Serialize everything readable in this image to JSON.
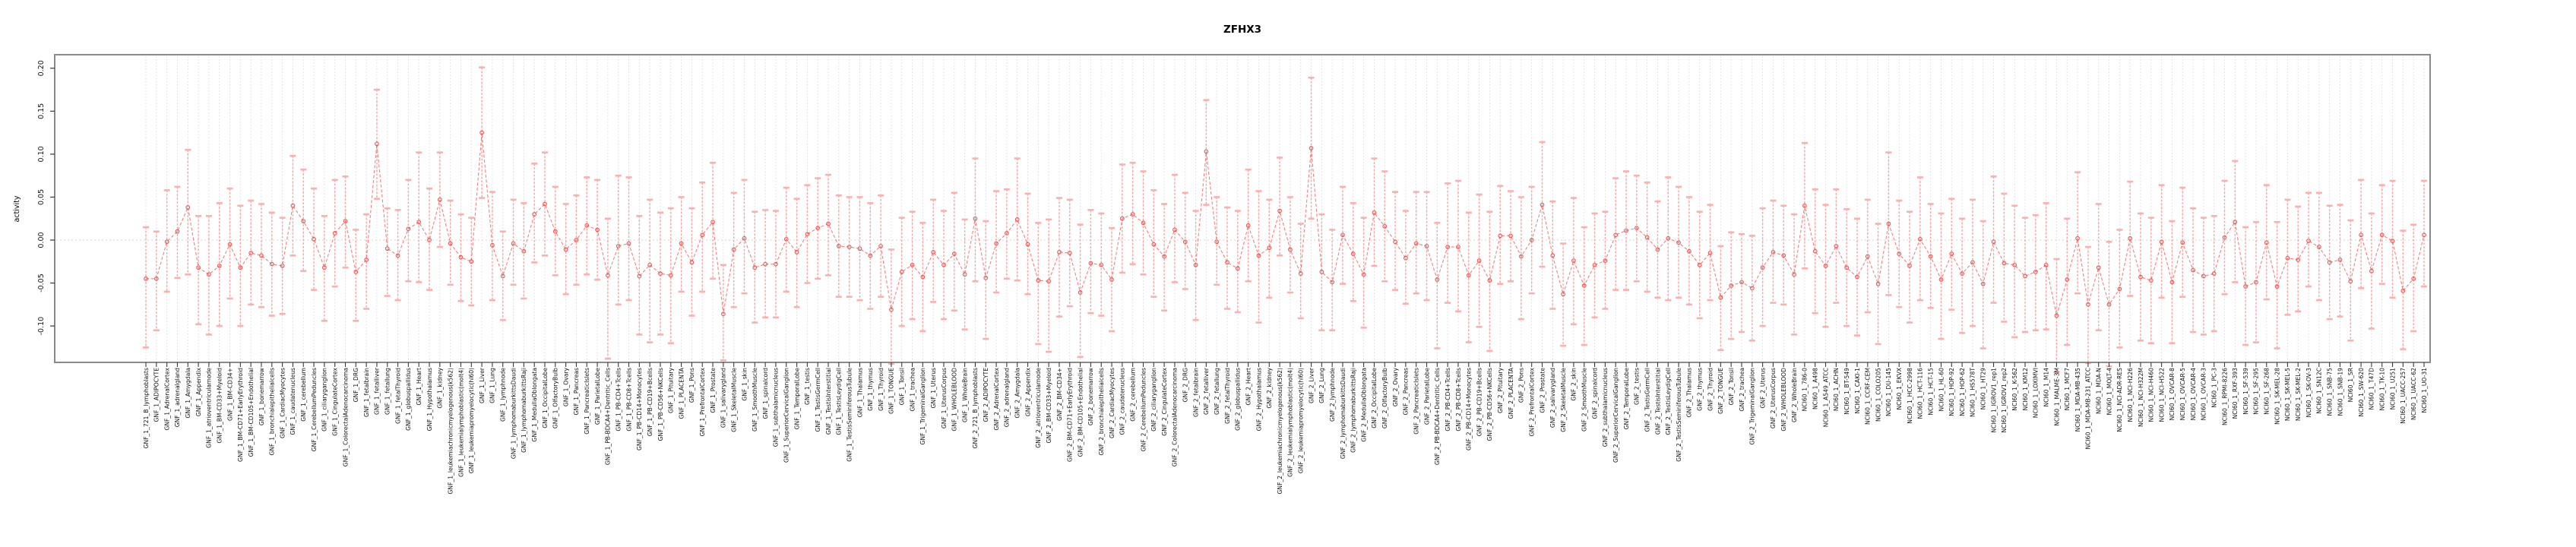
{
  "chart_data": {
    "type": "line",
    "subtype": "point-estimates-with-error-bars",
    "title": "ZFHX3",
    "ylabel": "activity",
    "xlabel": "",
    "legend_position": "none",
    "grid": {
      "vertical_dotted_per_category": true,
      "zero_line_dotted": true
    },
    "ylim": [
      -0.142,
      0.216
    ],
    "yticks": [
      0.2,
      0.15,
      0.1,
      0.05,
      0.0,
      -0.05,
      -0.1
    ],
    "colors": {
      "point": "#e85555",
      "connect_line": "#ef6666",
      "error_bar": "#f78f8f",
      "error_cap": "#fbb0b0",
      "gridline": "#d8d8d8",
      "zero_line": "#e3cfcf",
      "box": "#8a8a8a",
      "text": "#111111"
    },
    "categories": [
      "GNF_1_721_B_lymphoblasts",
      "GNF_1_ADIPOCYTE",
      "GNF_1_AdrenalCortex",
      "GNF_1_adrenalgland",
      "GNF_1_Amygdala",
      "GNF_1_Appendix",
      "GNF_1_atrioventricularnode",
      "GNF_1_BM-CD33+Myeloid",
      "GNF_1_BM-CD34+",
      "GNF_1_BM-CD71+EarlyErythroid",
      "GNF_1_BM-CD105+Endothelial",
      "GNF_1_bonemarrow",
      "GNF_1_bronchialepithelialcells",
      "GNF_1_CardiacMyocytes",
      "GNF_1_caudatenucleus",
      "GNF_1_cerebellum",
      "GNF_1_CerebellumPeduncles",
      "GNF_1_ciliaryganglion",
      "GNF_1_CingulateCortex",
      "GNF_1_ColorectalAdenocarcinoma",
      "GNF_1_DRG",
      "GNF_1_fetalbrain",
      "GNF_1_fetalliver",
      "GNF_1_fetallung",
      "GNF_1_fetalThyroid",
      "GNF_1_globuspallidus",
      "GNF_1_Heart",
      "GNF_1_Hypothalamus",
      "GNF_1_kidney",
      "GNF_1_leukemiachronicmyelogenous(k562)",
      "GNF_1_leukemialymphoblastic(molt4)",
      "GNF_1_leukemiapromyelocytic(hl60)",
      "GNF_1_Liver",
      "GNF_1_Lung",
      "GNF_1_lymphnode",
      "GNF_1_lymphomaburkittsDaudi",
      "GNF_1_lymphomaburkittsRaji",
      "GNF_1_MedullaOblongata",
      "GNF_1_OccipitalLobe",
      "GNF_1_OlfactoryBulb",
      "GNF_1_Ovary",
      "GNF_1_Pancreas",
      "GNF_1_PancreaticIslets",
      "GNF_1_ParietalLobe",
      "GNF_1_PB-BDCA4+Dentritic_Cells",
      "GNF_1_PB-CD4+Tcells",
      "GNF_1_PB-CD8+Tcells",
      "GNF_1_PB-CD14+Monocytes",
      "GNF_1_PB-CD19+Bcells",
      "GNF_1_PB-CD56+NKCells",
      "GNF_1_Pituitary",
      "GNF_1_PLACENTA",
      "GNF_1_Pons",
      "GNF_1_PrefrontalCortex",
      "GNF_1_Prostate",
      "GNF_1_salivarygland",
      "GNF_1_SkeletalMuscle",
      "GNF_1_skin",
      "GNF_1_SmoothMuscle",
      "GNF_1_spinalcord",
      "GNF_1_subthalamicnucleus",
      "GNF_1_SuperiorCervicalGanglion",
      "GNF_1_TemporalLobe",
      "GNF_1_testis",
      "GNF_1_TestisGermCell",
      "GNF_1_TestisInterstitial",
      "GNF_1_TestisLeydigCell",
      "GNF_1_TestisSeminiferousTubule",
      "GNF_1_Thalamus",
      "GNF_1_thymus",
      "GNF_1_Thyroid",
      "GNF_1_TONGUE",
      "GNF_1_Tonsil",
      "GNF_1_trachea",
      "GNF_1_TrigeminalGanglion",
      "GNF_1_Uterus",
      "GNF_1_UterusCorpus",
      "GNF_1_WHOLEBLOOD",
      "GNF_1_WholeBrain",
      "GNF_2_721_B_lymphoblasts",
      "GNF_2_ADIPOCYTE",
      "GNF_2_AdrenalCortex",
      "GNF_2_adrenalgland",
      "GNF_2_Amygdala",
      "GNF_2_Appendix",
      "GNF_2_atrioventricularnode",
      "GNF_2_BM-CD33+Myeloid",
      "GNF_2_BM-CD34+",
      "GNF_2_BM-CD71+EarlyErythroid",
      "GNF_2_BM-CD105+Endothelial",
      "GNF_2_bonemarrow",
      "GNF_2_bronchialepithelialcells",
      "GNF_2_CardiacMyocytes",
      "GNF_2_caudatenucleus",
      "GNF_2_cerebellum",
      "GNF_2_CerebellumPeduncles",
      "GNF_2_ciliaryganglion",
      "GNF_2_CingulateCortex",
      "GNF_2_ColorectalAdenocarcinoma",
      "GNF_2_DRG",
      "GNF_2_fetalbrain",
      "GNF_2_fetalliver",
      "GNF_2_fetallung",
      "GNF_2_fetalThyroid",
      "GNF_2_globuspallidus",
      "GNF_2_Heart",
      "GNF_2_Hypothalamus",
      "GNF_2_kidney",
      "GNF_2_leukemiachronicmyelogenous(k562)",
      "GNF_2_leukemialymphoblastic(molt4)",
      "GNF_2_leukemiapromyelocytic(hl60)",
      "GNF_2_Liver",
      "GNF_2_Lung",
      "GNF_2_lymphnode",
      "GNF_2_lymphomaburkittsDaudi",
      "GNF_2_lymphomaburkittsRaji",
      "GNF_2_MedullaOblongata",
      "GNF_2_OccipitalLobe",
      "GNF_2_OlfactoryBulb",
      "GNF_2_Ovary",
      "GNF_2_Pancreas",
      "GNF_2_PancreaticIslets",
      "GNF_2_ParietalLobe",
      "GNF_2_PB-BDCA4+Dentritic_Cells",
      "GNF_2_PB-CD4+Tcells",
      "GNF_2_PB-CD8+Tcells",
      "GNF_2_PB-CD14+Monocytes",
      "GNF_2_PB-CD19+Bcells",
      "GNF_2_PB-CD56+NKCells",
      "GNF_2_Pituitary",
      "GNF_2_PLACENTA",
      "GNF_2_Pons",
      "GNF_2_PrefrontalCortex",
      "GNF_2_Prostate",
      "GNF_2_salivarygland",
      "GNF_2_SkeletalMuscle",
      "GNF_2_skin",
      "GNF_2_SmoothMuscle",
      "GNF_2_spinalcord",
      "GNF_2_subthalamicnucleus",
      "GNF_2_SuperiorCervicalGanglion",
      "GNF_2_TemporalLobe",
      "GNF_2_testis",
      "GNF_2_TestisGermCell",
      "GNF_2_TestisInterstitial",
      "GNF_2_TestisLeydigCell",
      "GNF_2_TestisSeminiferousTubule",
      "GNF_2_Thalamus",
      "GNF_2_thymus",
      "GNF_2_Thyroid",
      "GNF_2_TONGUE",
      "GNF_2_Tonsil",
      "GNF_2_trachea",
      "GNF_2_TrigeminalGanglion",
      "GNF_2_Uterus",
      "GNF_2_UterusCorpus",
      "GNF_2_WHOLEBLOOD",
      "GNF_2_WholeBrain",
      "NCI60_1_786-0",
      "NCI60_1_A498",
      "NCI60_1_A549_ATCC",
      "NCI60_1_ACHN",
      "NCI60_1_BT-549",
      "NCI60_1_CAKI-1",
      "NCI60_1_CCRF-CEM",
      "NCI60_1_COLO205",
      "NCI60_1_DU-145",
      "NCI60_1_EKVX",
      "NCI60_1_HCC-2998",
      "NCI60_1_HCT-116",
      "NCI60_1_HCT-15",
      "NCI60_1_HL-60",
      "NCI60_1_HOP-92",
      "NCI60_1_HOP-62",
      "NCI60_1_HS578T",
      "NCI60_1_HT29",
      "NCI60_1_IGROV1_rep1",
      "NCI60_1_IGROV1_rep2",
      "NCI60_1_K-562",
      "NCI60_1_KM12",
      "NCI60_1_LOXIMVI",
      "NCI60_1_M14",
      "NCI60_1_MALME-3M",
      "NCI60_1_MCF7",
      "NCI60_1_MDA-MB-435",
      "NCI60_1_MDA-MB-231_ATCC",
      "NCI60_1_MDA-N",
      "NCI60_1_MOLT-4",
      "NCI60_1_NCI-ADR-RES",
      "NCI60_1_NCI-H226",
      "NCI60_1_NCI-H322M",
      "NCI60_1_NCI-H460",
      "NCI60_1_NCI-H522",
      "NCI60_1_OVCAR-8",
      "NCI60_1_OVCAR-5",
      "NCI60_1_OVCAR-4",
      "NCI60_1_OVCAR-3",
      "NCI60_1_PC-3",
      "NCI60_1_RPMI-8226",
      "NCI60_1_RXF-393",
      "NCI60_1_SF-539",
      "NCI60_1_SF-295",
      "NCI60_1_SF-268",
      "NCI60_1_SK-MEL-28",
      "NCI60_1_SK-MEL-5",
      "NCI60_1_SK-MEL-2",
      "NCI60_1_SK-OV-3",
      "NCI60_1_SN12C",
      "NCI60_1_SNB-75",
      "NCI60_1_SNB-19",
      "NCI60_1_SR",
      "NCI60_1_SW-620",
      "NCI60_1_T47D",
      "NCI60_1_TK-10",
      "NCI60_1_U251",
      "NCI60_1_UACC-257",
      "NCI60_1_UACC-62",
      "NCI60_1_UO-31"
    ],
    "series": [
      {
        "name": "mean",
        "values": [
          -0.045,
          -0.045,
          -0.002,
          0.01,
          0.038,
          -0.032,
          -0.04,
          -0.03,
          -0.005,
          -0.032,
          -0.015,
          -0.018,
          -0.028,
          -0.03,
          0.04,
          0.022,
          0.001,
          -0.032,
          0.008,
          0.022,
          -0.037,
          -0.023,
          0.112,
          -0.01,
          -0.018,
          0.013,
          0.021,
          0.0,
          0.047,
          -0.004,
          -0.02,
          -0.025,
          0.125,
          -0.006,
          -0.042,
          -0.004,
          -0.013,
          0.03,
          0.042,
          0.01,
          -0.011,
          0.0,
          0.017,
          0.012,
          -0.041,
          -0.007,
          -0.004,
          -0.042,
          -0.029,
          -0.039,
          -0.041,
          -0.004,
          -0.026,
          0.006,
          0.021,
          -0.086,
          -0.011,
          0.002,
          -0.032,
          -0.028,
          -0.028,
          0.001,
          -0.014,
          0.007,
          0.014,
          0.019,
          -0.007,
          -0.008,
          -0.01,
          -0.018,
          -0.007,
          -0.081,
          -0.037,
          -0.029,
          -0.043,
          -0.014,
          -0.029,
          -0.016,
          -0.04,
          0.025,
          -0.044,
          -0.004,
          0.008,
          0.024,
          -0.005,
          -0.047,
          -0.048,
          -0.014,
          -0.015,
          -0.061,
          -0.027,
          -0.029,
          -0.046,
          0.025,
          0.03,
          0.02,
          -0.005,
          -0.019,
          0.012,
          -0.002,
          -0.029,
          0.103,
          -0.002,
          -0.026,
          -0.033,
          0.017,
          -0.018,
          -0.009,
          0.034,
          -0.011,
          -0.039,
          0.107,
          -0.037,
          -0.049,
          0.006,
          -0.016,
          -0.04,
          0.032,
          0.016,
          -0.002,
          -0.021,
          -0.004,
          -0.007,
          -0.046,
          -0.008,
          -0.008,
          -0.041,
          -0.024,
          -0.047,
          0.005,
          0.005,
          -0.019,
          0.0,
          0.041,
          -0.018,
          -0.063,
          -0.024,
          -0.053,
          -0.029,
          -0.024,
          0.006,
          0.011,
          0.014,
          0.003,
          -0.011,
          0.002,
          -0.003,
          -0.013,
          -0.029,
          -0.015,
          -0.067,
          -0.053,
          -0.049,
          -0.056,
          -0.032,
          -0.014,
          -0.018,
          -0.04,
          0.04,
          -0.013,
          -0.03,
          -0.007,
          -0.032,
          -0.043,
          -0.019,
          -0.051,
          0.019,
          -0.016,
          -0.03,
          0.001,
          -0.019,
          -0.046,
          -0.016,
          -0.039,
          -0.026,
          -0.051,
          -0.002,
          -0.027,
          -0.029,
          -0.042,
          -0.037,
          -0.029,
          -0.088,
          -0.046,
          0.002,
          -0.075,
          -0.032,
          -0.075,
          -0.057,
          0.002,
          -0.043,
          -0.047,
          -0.002,
          -0.049,
          -0.003,
          -0.035,
          -0.042,
          -0.039,
          0.003,
          0.021,
          -0.054,
          -0.049,
          -0.003,
          -0.054,
          -0.021,
          -0.023,
          -0.001,
          -0.008,
          -0.026,
          -0.023,
          -0.048,
          0.006,
          -0.036,
          0.006,
          -0.001,
          -0.059,
          -0.045,
          0.006
        ]
      },
      {
        "name": "ci_lower",
        "values": [
          -0.125,
          -0.105,
          -0.06,
          -0.044,
          -0.04,
          -0.098,
          -0.11,
          -0.1,
          -0.068,
          -0.1,
          -0.075,
          -0.078,
          -0.088,
          -0.086,
          -0.018,
          -0.036,
          -0.058,
          -0.094,
          -0.054,
          -0.032,
          -0.094,
          -0.08,
          0.048,
          -0.065,
          -0.07,
          -0.048,
          -0.049,
          -0.058,
          -0.008,
          -0.052,
          -0.071,
          -0.076,
          0.049,
          -0.07,
          -0.093,
          -0.052,
          -0.068,
          -0.026,
          -0.018,
          -0.041,
          -0.063,
          -0.052,
          -0.04,
          -0.046,
          -0.138,
          -0.075,
          -0.07,
          -0.11,
          -0.119,
          -0.11,
          -0.12,
          -0.06,
          -0.088,
          -0.06,
          -0.045,
          -0.14,
          -0.078,
          -0.062,
          -0.096,
          -0.09,
          -0.09,
          -0.06,
          -0.078,
          -0.05,
          -0.045,
          -0.041,
          -0.066,
          -0.066,
          -0.07,
          -0.08,
          -0.066,
          -0.144,
          -0.1,
          -0.092,
          -0.106,
          -0.072,
          -0.092,
          -0.082,
          -0.104,
          -0.048,
          -0.115,
          -0.061,
          -0.045,
          -0.047,
          -0.063,
          -0.121,
          -0.13,
          -0.089,
          -0.077,
          -0.136,
          -0.085,
          -0.088,
          -0.106,
          -0.038,
          -0.028,
          -0.04,
          -0.066,
          -0.082,
          -0.049,
          -0.057,
          -0.093,
          0.041,
          -0.052,
          -0.08,
          -0.084,
          -0.048,
          -0.096,
          -0.067,
          -0.018,
          -0.061,
          -0.091,
          0.025,
          -0.105,
          -0.105,
          -0.051,
          -0.071,
          -0.102,
          -0.03,
          -0.048,
          -0.058,
          -0.074,
          -0.062,
          -0.07,
          -0.126,
          -0.073,
          -0.083,
          -0.119,
          -0.101,
          -0.129,
          -0.051,
          -0.048,
          -0.092,
          -0.062,
          -0.031,
          -0.08,
          -0.123,
          -0.098,
          -0.122,
          -0.09,
          -0.08,
          -0.058,
          -0.058,
          -0.048,
          -0.06,
          -0.067,
          -0.07,
          -0.067,
          -0.075,
          -0.091,
          -0.07,
          -0.128,
          -0.115,
          -0.107,
          -0.117,
          -0.1,
          -0.073,
          -0.075,
          -0.11,
          -0.033,
          -0.085,
          -0.101,
          -0.073,
          -0.1,
          -0.111,
          -0.084,
          -0.121,
          -0.064,
          -0.078,
          -0.096,
          -0.07,
          -0.079,
          -0.115,
          -0.081,
          -0.108,
          -0.1,
          -0.126,
          -0.073,
          -0.095,
          -0.113,
          -0.107,
          -0.105,
          -0.104,
          -0.154,
          -0.122,
          -0.062,
          -0.143,
          -0.105,
          -0.147,
          -0.125,
          -0.065,
          -0.117,
          -0.12,
          -0.067,
          -0.12,
          -0.066,
          -0.107,
          -0.11,
          -0.106,
          -0.063,
          -0.049,
          -0.122,
          -0.119,
          -0.069,
          -0.126,
          -0.087,
          -0.083,
          -0.054,
          -0.07,
          -0.092,
          -0.089,
          -0.117,
          -0.056,
          -0.103,
          -0.051,
          -0.067,
          -0.127,
          -0.106,
          -0.054
        ]
      },
      {
        "name": "ci_upper",
        "values": [
          0.015,
          0.01,
          0.058,
          0.062,
          0.105,
          0.028,
          0.028,
          0.043,
          0.06,
          0.04,
          0.046,
          0.042,
          0.032,
          0.026,
          0.098,
          0.082,
          0.06,
          0.028,
          0.07,
          0.074,
          0.012,
          0.03,
          0.175,
          0.037,
          0.035,
          0.07,
          0.102,
          0.06,
          0.102,
          0.046,
          0.03,
          0.026,
          0.201,
          0.056,
          0.01,
          0.047,
          0.043,
          0.089,
          0.102,
          0.062,
          0.042,
          0.052,
          0.073,
          0.07,
          0.025,
          0.075,
          0.073,
          0.028,
          0.047,
          0.032,
          0.037,
          0.05,
          0.037,
          0.067,
          0.09,
          -0.029,
          0.055,
          0.07,
          0.033,
          0.035,
          0.034,
          0.061,
          0.048,
          0.064,
          0.072,
          0.076,
          0.052,
          0.05,
          0.05,
          0.043,
          0.052,
          -0.011,
          0.026,
          0.033,
          0.02,
          0.047,
          0.034,
          0.055,
          0.024,
          0.095,
          0.022,
          0.057,
          0.059,
          0.095,
          0.054,
          0.02,
          0.024,
          0.049,
          0.047,
          0.018,
          0.035,
          0.031,
          0.014,
          0.088,
          0.09,
          0.08,
          0.058,
          0.042,
          0.076,
          0.055,
          0.034,
          0.163,
          0.05,
          0.038,
          0.034,
          0.082,
          0.057,
          0.047,
          0.096,
          0.05,
          0.019,
          0.189,
          0.03,
          0.012,
          0.062,
          0.043,
          0.026,
          0.095,
          0.08,
          0.056,
          0.034,
          0.056,
          0.056,
          0.02,
          0.066,
          0.069,
          0.032,
          0.053,
          0.033,
          0.063,
          0.057,
          0.05,
          0.062,
          0.114,
          0.045,
          -0.004,
          0.049,
          0.015,
          0.031,
          0.033,
          0.072,
          0.08,
          0.075,
          0.067,
          0.045,
          0.073,
          0.062,
          0.05,
          0.033,
          0.041,
          -0.007,
          0.009,
          0.007,
          0.005,
          0.037,
          0.046,
          0.04,
          0.03,
          0.113,
          0.059,
          0.041,
          0.059,
          0.036,
          0.025,
          0.047,
          0.019,
          0.102,
          0.046,
          0.033,
          0.073,
          0.042,
          0.031,
          0.048,
          0.025,
          0.047,
          0.022,
          0.074,
          0.054,
          0.04,
          0.026,
          0.029,
          0.043,
          -0.022,
          0.025,
          0.079,
          -0.008,
          0.042,
          -0.002,
          0.012,
          0.068,
          0.031,
          0.026,
          0.064,
          0.022,
          0.061,
          0.037,
          0.026,
          0.028,
          0.069,
          0.092,
          0.015,
          0.021,
          0.064,
          0.021,
          0.047,
          0.039,
          0.055,
          0.055,
          0.04,
          0.041,
          0.023,
          0.07,
          0.031,
          0.064,
          0.069,
          0.011,
          0.018,
          0.069
        ]
      }
    ]
  }
}
